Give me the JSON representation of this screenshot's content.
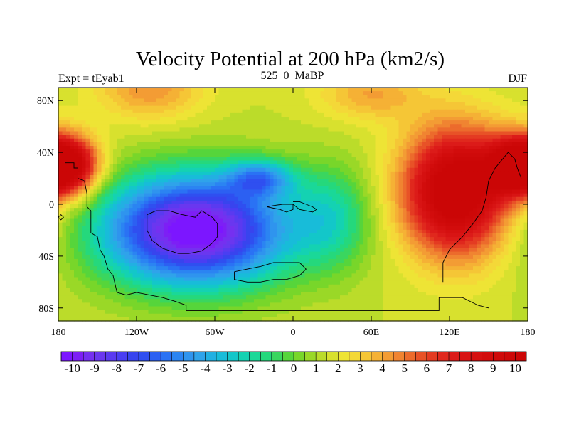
{
  "chart_data": {
    "type": "heatmap",
    "title": "Velocity Potential at 200 hPa (km2/s)",
    "left_label": "Expt = tEyab1",
    "center_label": "525_0_MaBP",
    "right_label": "DJF",
    "x_range": [
      -180,
      180
    ],
    "y_range": [
      -90,
      90
    ],
    "x_ticks": [
      {
        "value": -180,
        "label": "180"
      },
      {
        "value": -120,
        "label": "120W"
      },
      {
        "value": -60,
        "label": "60W"
      },
      {
        "value": 0,
        "label": "0"
      },
      {
        "value": 60,
        "label": "60E"
      },
      {
        "value": 120,
        "label": "120E"
      },
      {
        "value": 180,
        "label": "180"
      }
    ],
    "y_ticks": [
      {
        "value": 80,
        "label": "80N"
      },
      {
        "value": 40,
        "label": "40N"
      },
      {
        "value": 0,
        "label": "0"
      },
      {
        "value": -40,
        "label": "40S"
      },
      {
        "value": -80,
        "label": "80S"
      }
    ],
    "field": {
      "background": 1.5,
      "features": [
        {
          "lon": -75,
          "lat": -20,
          "amp": -12.5,
          "slon": 70,
          "slat": 42
        },
        {
          "lon": -25,
          "lat": 20,
          "amp": -5.0,
          "slon": 25,
          "slat": 14
        },
        {
          "lon": 125,
          "lat": 10,
          "amp": 10.5,
          "slon": 40,
          "slat": 48
        },
        {
          "lon": -170,
          "lat": 30,
          "amp": 8.0,
          "slon": 22,
          "slat": 22
        },
        {
          "lon": 170,
          "lat": 30,
          "amp": 8.0,
          "slon": 22,
          "slat": 22
        },
        {
          "lon": 30,
          "lat": -10,
          "amp": -3.0,
          "slon": 30,
          "slat": 40
        },
        {
          "lon": -110,
          "lat": 90,
          "amp": 3.0,
          "slon": 40,
          "slat": 25
        },
        {
          "lon": 60,
          "lat": 85,
          "amp": 2.5,
          "slon": 40,
          "slat": 20
        }
      ]
    },
    "colorbar": {
      "min": -10.5,
      "max": 10.5,
      "step": 0.5,
      "colors": [
        "#7c16ff",
        "#7d1ff5",
        "#7530f0",
        "#6a37ef",
        "#5a3af0",
        "#4a3ef2",
        "#3844ee",
        "#2f4ff0",
        "#2c60f2",
        "#2a72f4",
        "#2b84f2",
        "#2f94ee",
        "#2fa3ea",
        "#22b0e2",
        "#18bcd9",
        "#13c7c9",
        "#14d2b2",
        "#1ad898",
        "#25d87c",
        "#3ad65f",
        "#56d53b",
        "#78d62a",
        "#9ad827",
        "#bbdc2a",
        "#d8e12e",
        "#eee435",
        "#f4d838",
        "#f5c636",
        "#f5b135",
        "#f39c34",
        "#f08431",
        "#ec6b2c",
        "#e85227",
        "#e43b22",
        "#e0281d",
        "#dc1b19",
        "#d81414",
        "#d51010",
        "#d20c0c",
        "#cf0a0a",
        "#cd0808",
        "#cb0606"
      ],
      "labels": [
        "-10",
        "-9",
        "-8",
        "-7",
        "-6",
        "-5",
        "-4",
        "-3",
        "-2",
        "-1",
        "0",
        "1",
        "2",
        "3",
        "4",
        "5",
        "6",
        "7",
        "8",
        "9",
        "10"
      ]
    },
    "coastlines": [
      [
        [
          -175,
          32
        ],
        [
          -168,
          32
        ],
        [
          -168,
          28
        ],
        [
          -165,
          28
        ],
        [
          -165,
          20
        ],
        [
          -160,
          18
        ],
        [
          -158,
          8
        ],
        [
          -158,
          -2
        ],
        [
          -155,
          -5
        ],
        [
          -155,
          -22
        ],
        [
          -150,
          -25
        ],
        [
          -148,
          -35
        ],
        [
          -145,
          -40
        ],
        [
          -142,
          -50
        ],
        [
          -138,
          -55
        ],
        [
          -135,
          -68
        ],
        [
          -128,
          -70
        ],
        [
          -120,
          -68
        ],
        [
          -110,
          -70
        ],
        [
          -100,
          -72
        ],
        [
          -90,
          -75
        ],
        [
          -82,
          -78
        ],
        [
          -82,
          -82
        ],
        [
          -60,
          -82
        ],
        [
          -40,
          -82
        ],
        [
          -20,
          -82
        ],
        [
          0,
          -82
        ],
        [
          20,
          -82
        ],
        [
          40,
          -82
        ],
        [
          60,
          -82
        ],
        [
          80,
          -82
        ],
        [
          100,
          -82
        ],
        [
          112,
          -82
        ],
        [
          112,
          -72
        ],
        [
          120,
          -72
        ],
        [
          130,
          -72
        ],
        [
          138,
          -76
        ],
        [
          142,
          -78
        ],
        [
          150,
          -80
        ]
      ],
      [
        [
          -112,
          -8
        ],
        [
          -112,
          -20
        ],
        [
          -108,
          -28
        ],
        [
          -100,
          -34
        ],
        [
          -88,
          -38
        ],
        [
          -80,
          -38
        ],
        [
          -70,
          -36
        ],
        [
          -62,
          -30
        ],
        [
          -58,
          -25
        ],
        [
          -58,
          -15
        ],
        [
          -62,
          -10
        ],
        [
          -70,
          -5
        ],
        [
          -75,
          -10
        ],
        [
          -85,
          -8
        ],
        [
          -95,
          -5
        ],
        [
          -105,
          -5
        ],
        [
          -112,
          -8
        ]
      ],
      [
        [
          -45,
          -52
        ],
        [
          -35,
          -50
        ],
        [
          -25,
          -48
        ],
        [
          -15,
          -45
        ],
        [
          -5,
          -45
        ],
        [
          5,
          -45
        ],
        [
          10,
          -50
        ],
        [
          5,
          -55
        ],
        [
          -5,
          -58
        ],
        [
          -15,
          -58
        ],
        [
          -25,
          -60
        ],
        [
          -35,
          -60
        ],
        [
          -45,
          -58
        ],
        [
          -45,
          -52
        ]
      ],
      [
        [
          0,
          2
        ],
        [
          5,
          2
        ],
        [
          10,
          0
        ],
        [
          15,
          -2
        ],
        [
          18,
          -4
        ],
        [
          15,
          -6
        ],
        [
          5,
          -4
        ],
        [
          0,
          0
        ]
      ],
      [
        [
          -20,
          -2
        ],
        [
          -10,
          -4
        ],
        [
          -5,
          -6
        ],
        [
          0,
          -4
        ],
        [
          0,
          0
        ],
        [
          -8,
          0
        ],
        [
          -15,
          -1
        ],
        [
          -20,
          -2
        ]
      ],
      [
        [
          175,
          20
        ],
        [
          172,
          28
        ],
        [
          170,
          35
        ],
        [
          165,
          40
        ],
        [
          155,
          28
        ],
        [
          150,
          18
        ],
        [
          148,
          5
        ],
        [
          145,
          -5
        ],
        [
          138,
          -15
        ],
        [
          130,
          -25
        ],
        [
          120,
          -35
        ],
        [
          115,
          -45
        ],
        [
          115,
          -60
        ]
      ],
      [
        [
          -180,
          -10
        ],
        [
          -178,
          -12
        ],
        [
          -176,
          -10
        ],
        [
          -178,
          -8
        ],
        [
          -180,
          -10
        ]
      ]
    ]
  }
}
